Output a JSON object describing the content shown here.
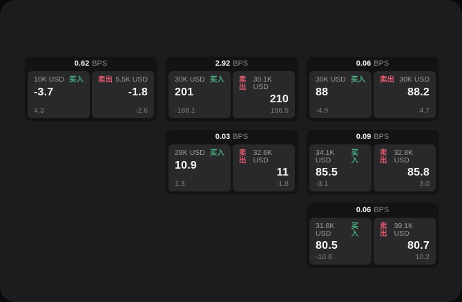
{
  "labels": {
    "buy": "买入",
    "sell": "卖出",
    "bps_unit": "BPS"
  },
  "colors": {
    "buy_green": "#4bae7f",
    "sell_red": "#dd5a6e",
    "panel_bg": "#1c1c1e",
    "card_bg": "#131314",
    "tile_bg": "#29292b",
    "page_bg": "#09090a"
  },
  "cards": [
    {
      "bps": "0.62",
      "buy": {
        "amount": "10K USD",
        "value": "-3.7",
        "delta": "4.3"
      },
      "sell": {
        "amount": "5.5K USD",
        "value": "-1.8",
        "delta": "-2.6"
      }
    },
    {
      "bps": "2.92",
      "buy": {
        "amount": "30K USD",
        "value": "201",
        "delta": "-188.1"
      },
      "sell": {
        "amount": "30.1K USD",
        "value": "210",
        "delta": "196.5"
      }
    },
    {
      "bps": "0.06",
      "buy": {
        "amount": "30K USD",
        "value": "88",
        "delta": "-4.9"
      },
      "sell": {
        "amount": "30K USD",
        "value": "88.2",
        "delta": "4.7"
      }
    },
    {
      "bps": "0.03",
      "buy": {
        "amount": "28K USD",
        "value": "10.9",
        "delta": "1.3"
      },
      "sell": {
        "amount": "32.6K USD",
        "value": "11",
        "delta": "-1.8"
      }
    },
    {
      "bps": "0.09",
      "buy": {
        "amount": "34.1K USD",
        "value": "85.5",
        "delta": "-3.1"
      },
      "sell": {
        "amount": "32.8K USD",
        "value": "85.8",
        "delta": "3.0"
      }
    },
    {
      "bps": "0.06",
      "buy": {
        "amount": "31.8K USD",
        "value": "80.5",
        "delta": "-10.8"
      },
      "sell": {
        "amount": "39.1K USD",
        "value": "80.7",
        "delta": "10.2"
      }
    }
  ]
}
